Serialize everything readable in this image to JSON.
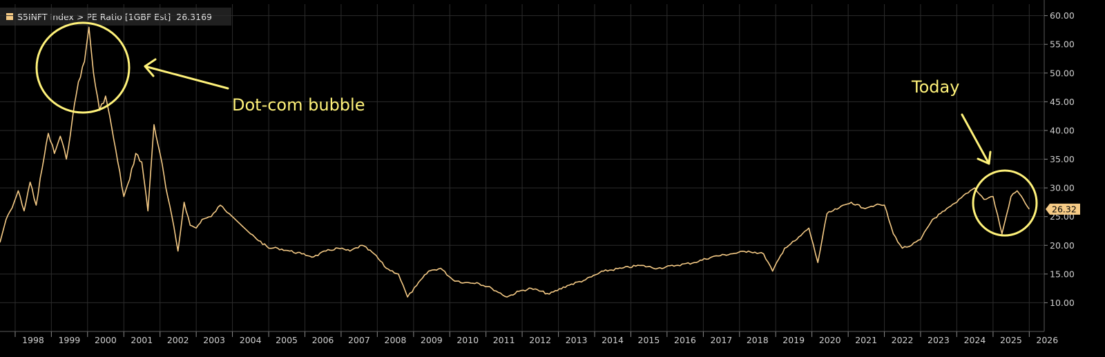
{
  "legend": {
    "ticker": "S5INFT Index",
    "separator": ">",
    "field": "PE Ratio [1GBF Est]",
    "value": "26.3169"
  },
  "colors": {
    "line": "#f6cb86",
    "annotation": "#fff27a",
    "grid": "#2c2c2c",
    "axis_text": "#d0d0d0",
    "background": "#000000"
  },
  "annotations": [
    {
      "text": "Dot-com bubble"
    },
    {
      "text": "Today"
    }
  ],
  "last_value_label": "26.32",
  "chart_data": {
    "type": "line",
    "title": "",
    "xlabel": "",
    "ylabel": "",
    "series_name": "S5INFT Index > PE Ratio [1GBF Est]",
    "xlim": [
      "1997-08-01",
      "2026-06-01"
    ],
    "ylim": [
      5,
      62
    ],
    "grid": true,
    "legend_position": "top-left",
    "y_ticks": [
      "10.00",
      "15.00",
      "20.00",
      "25.00",
      "30.00",
      "35.00",
      "40.00",
      "45.00",
      "50.00",
      "55.00",
      "60.00"
    ],
    "x_tick_labels": [
      "1998",
      "1999",
      "2000",
      "2001",
      "2002",
      "2003",
      "2004",
      "2005",
      "2006",
      "2007",
      "2008",
      "2009",
      "2010",
      "2011",
      "2012",
      "2013",
      "2014",
      "2015",
      "2016",
      "2017",
      "2018",
      "2019",
      "2020",
      "2021",
      "2022",
      "2023",
      "2024",
      "2025",
      "2026"
    ],
    "points": [
      [
        "1997-08-01",
        20.5
      ],
      [
        "1997-10-01",
        24.5
      ],
      [
        "1997-12-01",
        26.5
      ],
      [
        "1998-02-01",
        29.5
      ],
      [
        "1998-04-01",
        26.0
      ],
      [
        "1998-06-01",
        31.0
      ],
      [
        "1998-08-01",
        27.0
      ],
      [
        "1998-10-01",
        33.5
      ],
      [
        "1998-12-01",
        39.5
      ],
      [
        "1999-02-01",
        36.0
      ],
      [
        "1999-04-01",
        39.0
      ],
      [
        "1999-06-01",
        35.0
      ],
      [
        "1999-08-01",
        42.0
      ],
      [
        "1999-10-01",
        48.5
      ],
      [
        "1999-12-01",
        52.0
      ],
      [
        "2000-01-15",
        58.0
      ],
      [
        "2000-03-01",
        50.0
      ],
      [
        "2000-05-01",
        43.5
      ],
      [
        "2000-07-01",
        46.0
      ],
      [
        "2000-09-01",
        40.5
      ],
      [
        "2000-11-01",
        34.5
      ],
      [
        "2001-01-01",
        28.5
      ],
      [
        "2001-03-01",
        31.5
      ],
      [
        "2001-05-01",
        36.0
      ],
      [
        "2001-07-01",
        34.5
      ],
      [
        "2001-09-01",
        26.0
      ],
      [
        "2001-11-01",
        41.0
      ],
      [
        "2002-01-01",
        36.0
      ],
      [
        "2002-03-01",
        30.0
      ],
      [
        "2002-05-01",
        25.0
      ],
      [
        "2002-07-01",
        19.0
      ],
      [
        "2002-09-01",
        27.5
      ],
      [
        "2002-11-01",
        23.5
      ],
      [
        "2003-01-01",
        23.0
      ],
      [
        "2003-03-01",
        24.5
      ],
      [
        "2003-06-01",
        25.0
      ],
      [
        "2003-09-01",
        27.0
      ],
      [
        "2003-12-01",
        25.5
      ],
      [
        "2004-07-01",
        22.0
      ],
      [
        "2005-01-01",
        19.5
      ],
      [
        "2005-04-01",
        19.5
      ],
      [
        "2005-08-01",
        19.0
      ],
      [
        "2005-12-01",
        18.5
      ],
      [
        "2006-04-01",
        18.0
      ],
      [
        "2006-08-01",
        19.0
      ],
      [
        "2006-12-01",
        19.5
      ],
      [
        "2007-04-01",
        19.0
      ],
      [
        "2007-08-01",
        20.0
      ],
      [
        "2007-12-01",
        18.5
      ],
      [
        "2008-04-01",
        16.0
      ],
      [
        "2008-08-01",
        15.0
      ],
      [
        "2008-11-01",
        11.0
      ],
      [
        "2009-02-01",
        13.0
      ],
      [
        "2009-06-01",
        15.5
      ],
      [
        "2009-10-01",
        16.0
      ],
      [
        "2010-02-01",
        14.0
      ],
      [
        "2010-06-01",
        13.5
      ],
      [
        "2010-10-01",
        13.5
      ],
      [
        "2011-03-01",
        12.5
      ],
      [
        "2011-08-01",
        11.0
      ],
      [
        "2011-12-01",
        12.0
      ],
      [
        "2012-04-01",
        12.5
      ],
      [
        "2012-10-01",
        11.5
      ],
      [
        "2013-04-01",
        13.0
      ],
      [
        "2013-10-01",
        14.0
      ],
      [
        "2014-04-01",
        15.5
      ],
      [
        "2014-10-01",
        16.0
      ],
      [
        "2015-04-01",
        16.5
      ],
      [
        "2015-10-01",
        16.0
      ],
      [
        "2016-04-01",
        16.5
      ],
      [
        "2016-10-01",
        17.0
      ],
      [
        "2017-04-01",
        18.0
      ],
      [
        "2017-10-01",
        18.5
      ],
      [
        "2018-04-01",
        19.0
      ],
      [
        "2018-09-01",
        18.5
      ],
      [
        "2018-12-01",
        15.5
      ],
      [
        "2019-04-01",
        19.5
      ],
      [
        "2019-08-01",
        21.0
      ],
      [
        "2019-12-01",
        23.0
      ],
      [
        "2020-03-01",
        17.0
      ],
      [
        "2020-06-01",
        25.5
      ],
      [
        "2020-10-01",
        26.5
      ],
      [
        "2021-02-01",
        27.5
      ],
      [
        "2021-06-01",
        26.5
      ],
      [
        "2021-10-01",
        27.0
      ],
      [
        "2022-01-01",
        27.0
      ],
      [
        "2022-04-01",
        22.0
      ],
      [
        "2022-07-01",
        19.5
      ],
      [
        "2022-10-01",
        20.0
      ],
      [
        "2023-01-01",
        21.0
      ],
      [
        "2023-05-01",
        24.5
      ],
      [
        "2023-09-01",
        26.0
      ],
      [
        "2024-01-01",
        27.5
      ],
      [
        "2024-04-01",
        29.0
      ],
      [
        "2024-07-01",
        30.0
      ],
      [
        "2024-10-01",
        28.0
      ],
      [
        "2025-01-01",
        28.5
      ],
      [
        "2025-04-01",
        22.0
      ],
      [
        "2025-07-01",
        28.5
      ],
      [
        "2025-09-01",
        29.5
      ],
      [
        "2025-11-01",
        28.0
      ],
      [
        "2026-01-01",
        26.3
      ]
    ]
  }
}
